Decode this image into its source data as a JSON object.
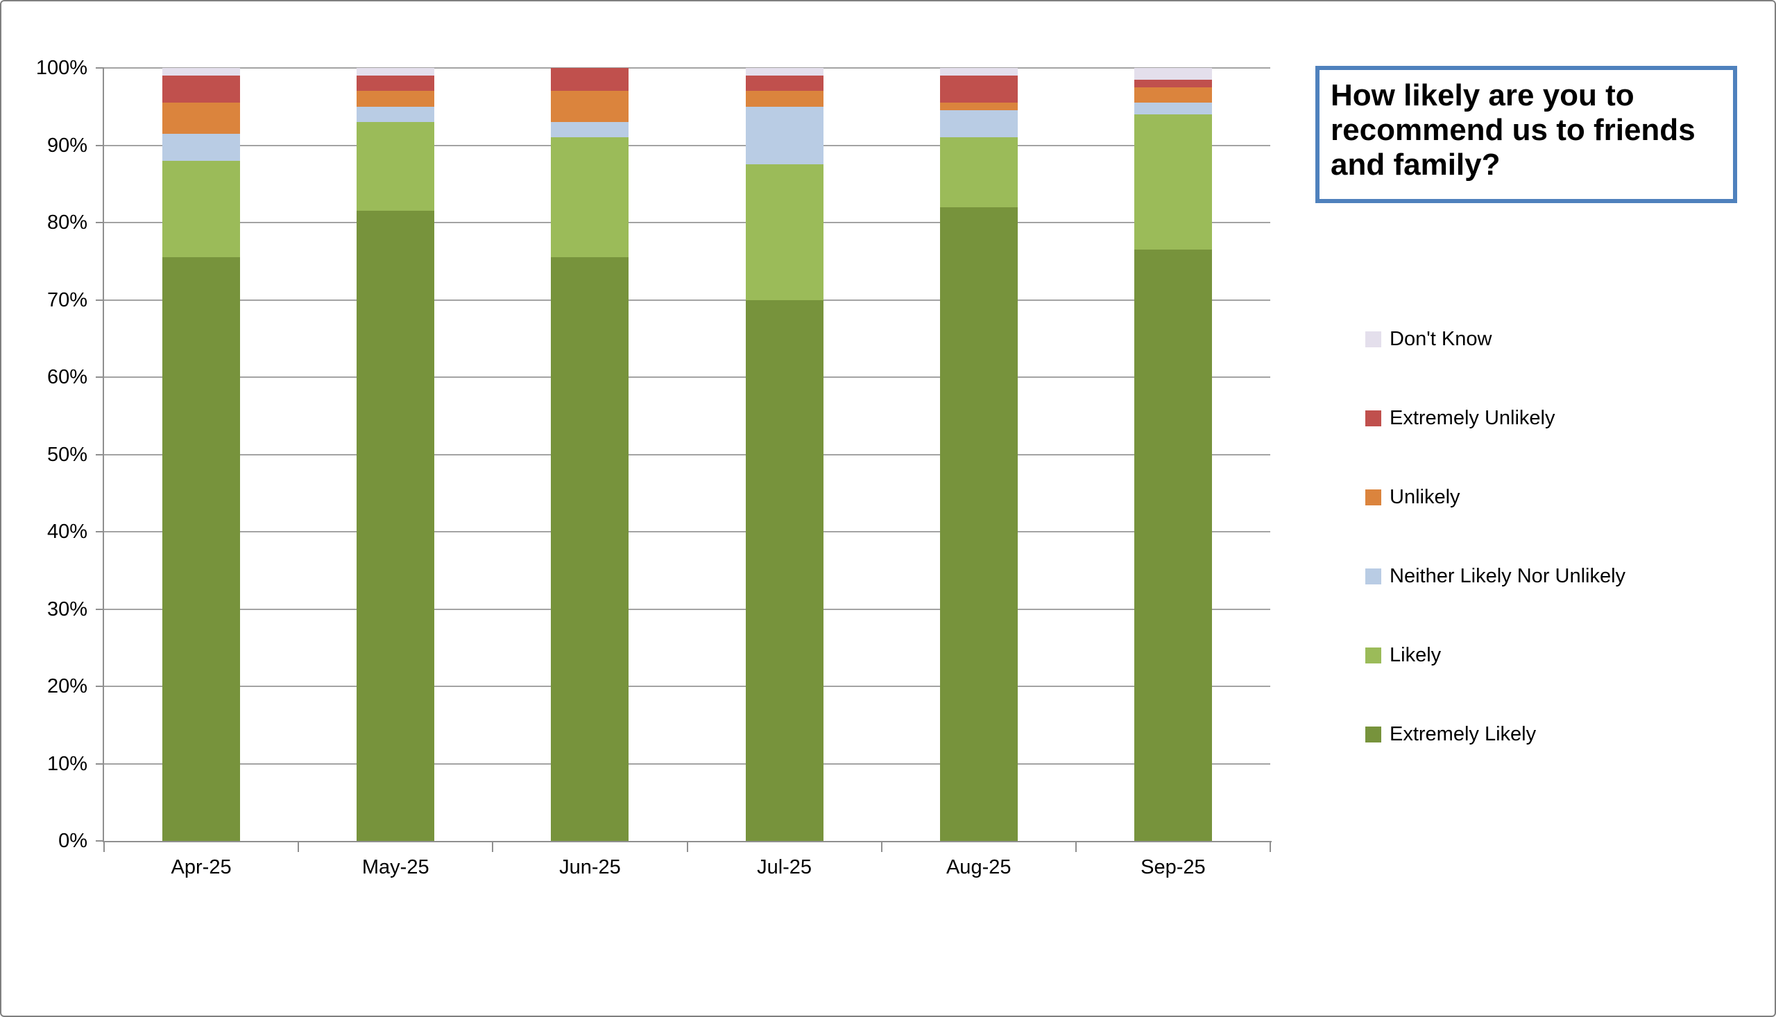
{
  "title": {
    "text": "How likely are you to recommend us to friends and family?",
    "border_color": "#4f81bd"
  },
  "chart_data": {
    "type": "bar",
    "stacked": true,
    "percent_stacked": true,
    "title": "How likely are you to recommend us to friends and family?",
    "xlabel": "",
    "ylabel": "",
    "ylim": [
      0,
      100
    ],
    "grid": true,
    "legend_position": "right",
    "categories": [
      "Apr-25",
      "May-25",
      "Jun-25",
      "Jul-25",
      "Aug-25",
      "Sep-25"
    ],
    "y_ticks": [
      "0%",
      "10%",
      "20%",
      "30%",
      "40%",
      "50%",
      "60%",
      "70%",
      "80%",
      "90%",
      "100%"
    ],
    "series": [
      {
        "name": "Extremely Likely",
        "color": "#77933c",
        "values": [
          75.5,
          81.5,
          75.5,
          70,
          82,
          76.5
        ]
      },
      {
        "name": "Likely",
        "color": "#9bbb59",
        "values": [
          12.5,
          11.5,
          15.5,
          17.5,
          9,
          17.5
        ]
      },
      {
        "name": "Neither Likely Nor Unlikely",
        "color": "#b9cce4",
        "values": [
          3.5,
          2,
          2,
          7.5,
          3.5,
          1.5
        ]
      },
      {
        "name": "Unlikely",
        "color": "#db843d",
        "values": [
          4,
          2,
          4,
          2,
          1,
          2
        ]
      },
      {
        "name": "Extremely Unlikely",
        "color": "#c0504d",
        "values": [
          3.5,
          2,
          3,
          2,
          3.5,
          1
        ]
      },
      {
        "name": "Don't Know",
        "color": "#e4dfec",
        "values": [
          1,
          1,
          0,
          1,
          1,
          1.5
        ]
      }
    ],
    "legend_order": [
      "Don't Know",
      "Extremely Unlikely",
      "Unlikely",
      "Neither Likely Nor Unlikely",
      "Likely",
      "Extremely Likely"
    ]
  },
  "colors": {
    "gridline": "#a3a3a3",
    "axis": "#8f8f8f",
    "frame": "#7f7f7f"
  }
}
